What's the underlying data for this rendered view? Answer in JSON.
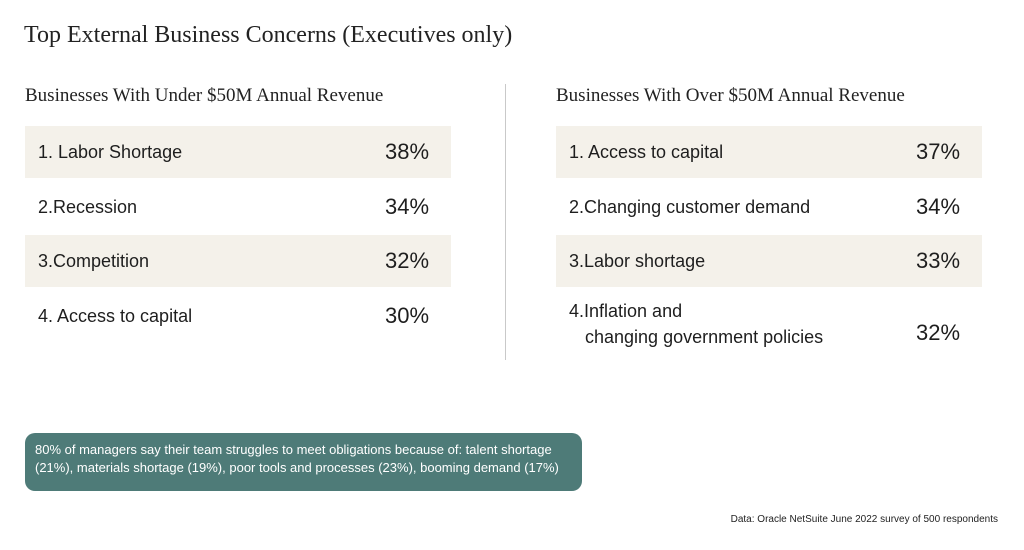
{
  "title": "Top External Business Concerns (Executives only)",
  "chart_data": [
    {
      "type": "table",
      "title": "Businesses With Under $50M Annual Revenue",
      "rows": [
        {
          "label": "1. Labor Shortage",
          "value": 38,
          "display": "38%"
        },
        {
          "label": "2.Recession",
          "value": 34,
          "display": "34%"
        },
        {
          "label": "3.Competition",
          "value": 32,
          "display": "32%"
        },
        {
          "label": "4. Access to capital",
          "value": 30,
          "display": "30%"
        }
      ]
    },
    {
      "type": "table",
      "title": "Businesses With Over $50M Annual Revenue",
      "rows": [
        {
          "label": "1. Access to capital",
          "value": 37,
          "display": "37%"
        },
        {
          "label": "2.Changing customer demand",
          "value": 34,
          "display": "34%"
        },
        {
          "label": "3.Labor shortage",
          "value": 33,
          "display": "33%"
        },
        {
          "label": "4.Inflation and",
          "label_line2": "changing government policies",
          "value": 32,
          "display": "32%"
        }
      ]
    }
  ],
  "callout": "80% of managers say their team struggles to meet obligations because of: talent shortage (21%), materials shortage (19%), poor tools and processes (23%), booming demand (17%)",
  "source": "Data: Oracle NetSuite June 2022 survey of 500 respondents",
  "colors": {
    "row_shade": "#f4f1ea",
    "callout_bg": "#4e7b78"
  }
}
